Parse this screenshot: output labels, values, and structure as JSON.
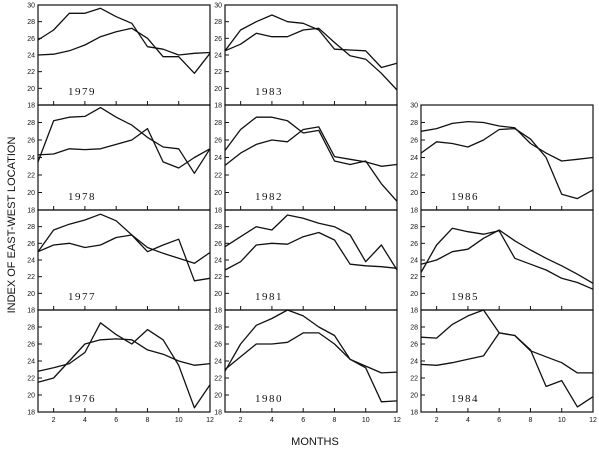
{
  "chart_data": {
    "type": "line",
    "ylabel": "INDEX OF EAST-WEST LOCATION",
    "xlabel": "MONTHS",
    "x_ticks": [
      "2",
      "4",
      "6",
      "8",
      "10",
      "12"
    ],
    "ylim": [
      18,
      30
    ],
    "y_ticks_top": [
      "18",
      "20",
      "22",
      "24",
      "26",
      "28",
      "30"
    ],
    "y_ticks": [
      "18",
      "20",
      "22",
      "24",
      "26",
      "28"
    ],
    "panels": [
      {
        "year": "1979",
        "col": 0,
        "row": 0,
        "series": [
          {
            "x": [
              1,
              2,
              3,
              4,
              5,
              6,
              7,
              8,
              9,
              10,
              11,
              12
            ],
            "values": [
              25.8,
              27.0,
              29.0,
              29.0,
              29.6,
              28.6,
              27.8,
              25.0,
              24.7,
              24.0,
              24.2,
              24.3
            ]
          },
          {
            "x": [
              1,
              2,
              3,
              4,
              5,
              6,
              7,
              8,
              9,
              10,
              11,
              12
            ],
            "values": [
              24.0,
              24.1,
              24.5,
              25.2,
              26.2,
              26.8,
              27.2,
              26.0,
              23.8,
              23.8,
              21.8,
              24.2
            ]
          }
        ]
      },
      {
        "year": "1978",
        "col": 0,
        "row": 1,
        "series": [
          {
            "x": [
              1,
              2,
              3,
              4,
              5,
              6,
              7,
              8,
              9,
              10,
              11,
              12
            ],
            "values": [
              23.5,
              28.2,
              28.6,
              28.7,
              29.7,
              28.6,
              27.7,
              26.3,
              25.2,
              25.0,
              22.2,
              25.0
            ]
          },
          {
            "x": [
              1,
              2,
              3,
              4,
              5,
              6,
              7,
              8,
              9,
              10,
              11,
              12
            ],
            "values": [
              24.3,
              24.4,
              25.0,
              24.9,
              25.0,
              25.5,
              26.0,
              27.3,
              23.5,
              22.8,
              24.0,
              25.0
            ]
          }
        ]
      },
      {
        "year": "1977",
        "col": 0,
        "row": 2,
        "series": [
          {
            "x": [
              1,
              2,
              3,
              4,
              5,
              6,
              7,
              8,
              9,
              10,
              11,
              12
            ],
            "values": [
              25.0,
              27.6,
              28.3,
              28.8,
              29.5,
              28.7,
              27.0,
              25.5,
              24.8,
              24.2,
              23.6,
              24.9
            ]
          },
          {
            "x": [
              1,
              2,
              3,
              4,
              5,
              6,
              7,
              8,
              9,
              10,
              11,
              12
            ],
            "values": [
              25.0,
              25.8,
              26.0,
              25.5,
              25.8,
              26.7,
              27.0,
              25.0,
              25.8,
              26.5,
              21.5,
              21.8
            ]
          }
        ]
      },
      {
        "year": "1976",
        "col": 0,
        "row": 3,
        "series": [
          {
            "x": [
              1,
              2,
              3,
              4,
              5,
              6,
              7,
              8,
              9,
              10,
              11,
              12
            ],
            "values": [
              22.8,
              23.2,
              23.7,
              25.0,
              28.5,
              27.1,
              26.0,
              27.7,
              26.5,
              23.5,
              18.5,
              21.2
            ]
          },
          {
            "x": [
              1,
              2,
              3,
              4,
              5,
              6,
              7,
              8,
              9,
              10,
              11,
              12
            ],
            "values": [
              21.5,
              22.0,
              24.0,
              26.0,
              26.5,
              26.6,
              26.5,
              25.3,
              24.8,
              24.0,
              23.5,
              23.7
            ]
          }
        ]
      },
      {
        "year": "1983",
        "col": 1,
        "row": 0,
        "series": [
          {
            "x": [
              1,
              2,
              3,
              4,
              5,
              6,
              7,
              8,
              9,
              10,
              11,
              12
            ],
            "values": [
              24.5,
              27.0,
              28.0,
              28.8,
              28.0,
              27.8,
              27.0,
              24.7,
              24.6,
              24.5,
              22.5,
              23.0
            ]
          },
          {
            "x": [
              1,
              2,
              3,
              4,
              5,
              6,
              7,
              8,
              9,
              10,
              11,
              12
            ],
            "values": [
              24.5,
              25.3,
              26.6,
              26.2,
              26.2,
              27.0,
              27.2,
              25.5,
              23.9,
              23.5,
              21.8,
              19.8
            ]
          }
        ]
      },
      {
        "year": "1982",
        "col": 1,
        "row": 1,
        "series": [
          {
            "x": [
              1,
              2,
              3,
              4,
              5,
              6,
              7,
              8,
              9,
              10,
              11,
              12
            ],
            "values": [
              24.8,
              27.2,
              28.6,
              28.6,
              28.2,
              26.8,
              27.1,
              23.6,
              23.2,
              23.6,
              21.0,
              19.0
            ]
          },
          {
            "x": [
              1,
              2,
              3,
              4,
              5,
              6,
              7,
              8,
              9,
              10,
              11,
              12
            ],
            "values": [
              23.1,
              24.5,
              25.5,
              26.0,
              25.8,
              27.2,
              27.5,
              24.1,
              23.8,
              23.5,
              23.0,
              23.2
            ]
          }
        ]
      },
      {
        "year": "1981",
        "col": 1,
        "row": 2,
        "series": [
          {
            "x": [
              1,
              2,
              3,
              4,
              5,
              6,
              7,
              8,
              9,
              10,
              11,
              12
            ],
            "values": [
              25.6,
              26.8,
              28.0,
              27.6,
              29.4,
              29.0,
              28.4,
              28.0,
              27.0,
              23.8,
              25.8,
              22.8
            ]
          },
          {
            "x": [
              1,
              2,
              3,
              4,
              5,
              6,
              7,
              8,
              9,
              10,
              11,
              12
            ],
            "values": [
              22.8,
              23.8,
              25.8,
              26.0,
              25.9,
              26.8,
              27.3,
              26.4,
              23.5,
              23.3,
              23.2,
              23.0
            ]
          }
        ]
      },
      {
        "year": "1980",
        "col": 1,
        "row": 3,
        "series": [
          {
            "x": [
              1,
              2,
              3,
              4,
              5,
              6,
              7,
              8,
              9,
              10,
              11,
              12
            ],
            "values": [
              22.8,
              26.0,
              28.2,
              29.0,
              30.0,
              29.3,
              28.0,
              27.0,
              24.2,
              23.4,
              22.6,
              22.7
            ]
          },
          {
            "x": [
              1,
              2,
              3,
              4,
              5,
              6,
              7,
              8,
              9,
              10,
              11,
              12
            ],
            "values": [
              23.0,
              24.5,
              26.0,
              26.0,
              26.2,
              27.3,
              27.3,
              26.0,
              24.2,
              23.2,
              19.2,
              19.3
            ]
          }
        ]
      },
      {
        "year": "1986",
        "col": 2,
        "row": 1,
        "series": [
          {
            "x": [
              1,
              2,
              3,
              4,
              5,
              6,
              7,
              8,
              9,
              10,
              11,
              12
            ],
            "values": [
              27.0,
              27.3,
              27.9,
              28.1,
              28.0,
              27.6,
              27.4,
              25.6,
              24.5,
              23.6,
              23.8,
              24.0
            ]
          },
          {
            "x": [
              1,
              2,
              3,
              4,
              5,
              6,
              7,
              8,
              9,
              10,
              11,
              12
            ],
            "values": [
              24.5,
              25.8,
              25.6,
              25.2,
              26.0,
              27.2,
              27.3,
              26.1,
              24.0,
              19.8,
              19.3,
              20.3
            ]
          }
        ]
      },
      {
        "year": "1985",
        "col": 2,
        "row": 2,
        "series": [
          {
            "x": [
              1,
              2,
              3,
              4,
              5,
              6,
              7,
              8,
              9,
              10,
              11,
              12
            ],
            "values": [
              22.5,
              25.8,
              27.8,
              27.4,
              27.1,
              27.5,
              24.2,
              23.5,
              22.8,
              21.8,
              21.3,
              20.5
            ]
          },
          {
            "x": [
              1,
              2,
              3,
              4,
              5,
              6,
              7,
              8,
              9,
              10,
              11,
              12
            ],
            "values": [
              23.5,
              24.0,
              25.0,
              25.3,
              26.6,
              27.6,
              26.3,
              25.2,
              24.2,
              23.3,
              22.3,
              21.2
            ]
          }
        ]
      },
      {
        "year": "1984",
        "col": 2,
        "row": 3,
        "series": [
          {
            "x": [
              1,
              2,
              3,
              4,
              5,
              6,
              7,
              8,
              9,
              10,
              11,
              12
            ],
            "values": [
              26.8,
              26.7,
              28.3,
              29.3,
              30.0,
              27.3,
              27.0,
              25.3,
              21.0,
              21.7,
              18.6,
              19.8
            ]
          },
          {
            "x": [
              1,
              2,
              3,
              4,
              5,
              6,
              7,
              8,
              9,
              10,
              11,
              12
            ],
            "values": [
              23.6,
              23.5,
              23.8,
              24.2,
              24.6,
              27.3,
              27.0,
              25.2,
              24.5,
              23.8,
              22.6,
              22.6
            ]
          }
        ]
      }
    ]
  }
}
